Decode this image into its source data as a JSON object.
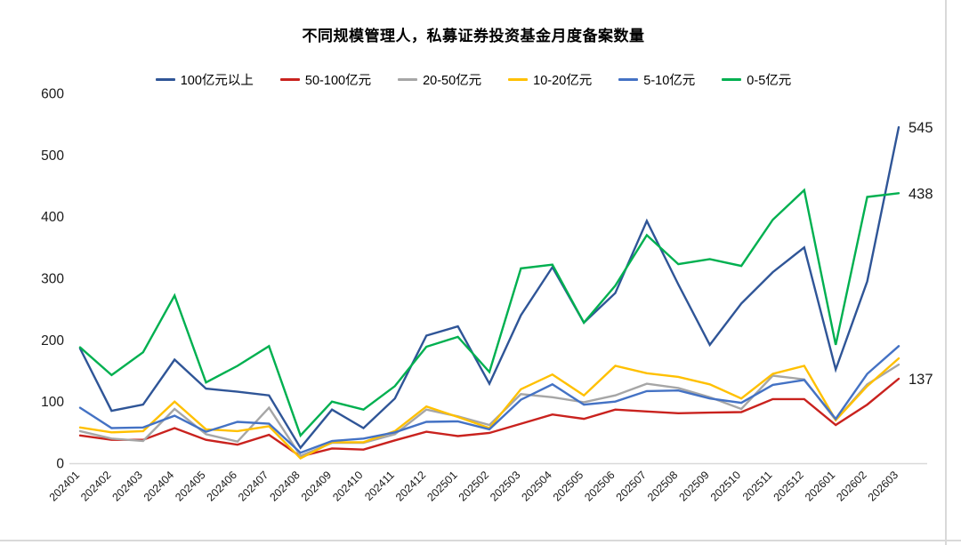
{
  "title": "不同规模管理人，私募证券投资基金月度备案数量",
  "chart_data": {
    "type": "line",
    "grid": false,
    "legend_position": "top",
    "ylim": [
      0,
      600
    ],
    "y_ticks": [
      0,
      100,
      200,
      300,
      400,
      500,
      600
    ],
    "categories": [
      "202401",
      "202402",
      "202403",
      "202404",
      "202405",
      "202406",
      "202407",
      "202408",
      "202409",
      "202410",
      "202411",
      "202412",
      "202501",
      "202502",
      "202503",
      "202504",
      "202505",
      "202506",
      "202507",
      "202508",
      "202509",
      "202510",
      "202511",
      "202512",
      "202601",
      "202602",
      "202603"
    ],
    "series": [
      {
        "name": "100亿元以上",
        "color": "#2F5597",
        "end_label": "545",
        "values": [
          186,
          85,
          95,
          168,
          121,
          116,
          110,
          25,
          87,
          57,
          105,
          207,
          222,
          129,
          240,
          318,
          228,
          276,
          393,
          290,
          192,
          259,
          310,
          350,
          152,
          295,
          545
        ]
      },
      {
        "name": "50-100亿元",
        "color": "#C9221E",
        "end_label": "137",
        "values": [
          45,
          38,
          38,
          57,
          38,
          30,
          46,
          11,
          24,
          22,
          37,
          51,
          44,
          49,
          64,
          79,
          72,
          87,
          84,
          81,
          82,
          83,
          104,
          104,
          62,
          95,
          137
        ]
      },
      {
        "name": "20-50亿元",
        "color": "#A6A6A6",
        "end_label": "",
        "values": [
          52,
          40,
          36,
          88,
          47,
          35,
          90,
          12,
          33,
          33,
          47,
          87,
          76,
          62,
          112,
          107,
          99,
          110,
          129,
          122,
          107,
          88,
          142,
          136,
          70,
          128,
          160
        ]
      },
      {
        "name": "10-20亿元",
        "color": "#FFC000",
        "end_label": "",
        "values": [
          58,
          50,
          52,
          100,
          55,
          52,
          60,
          8,
          34,
          34,
          52,
          92,
          75,
          57,
          120,
          144,
          110,
          158,
          146,
          140,
          128,
          105,
          145,
          158,
          70,
          125,
          170
        ]
      },
      {
        "name": "5-10亿元",
        "color": "#4472C4",
        "end_label": "",
        "values": [
          90,
          57,
          58,
          77,
          51,
          67,
          64,
          17,
          36,
          40,
          50,
          67,
          68,
          55,
          103,
          128,
          95,
          100,
          117,
          118,
          105,
          98,
          127,
          135,
          72,
          145,
          190
        ]
      },
      {
        "name": "0-5亿元",
        "color": "#00B050",
        "end_label": "438",
        "values": [
          188,
          143,
          180,
          272,
          131,
          158,
          190,
          45,
          100,
          87,
          125,
          189,
          205,
          148,
          316,
          322,
          228,
          288,
          370,
          323,
          331,
          320,
          395,
          443,
          192,
          432,
          438
        ]
      }
    ]
  }
}
